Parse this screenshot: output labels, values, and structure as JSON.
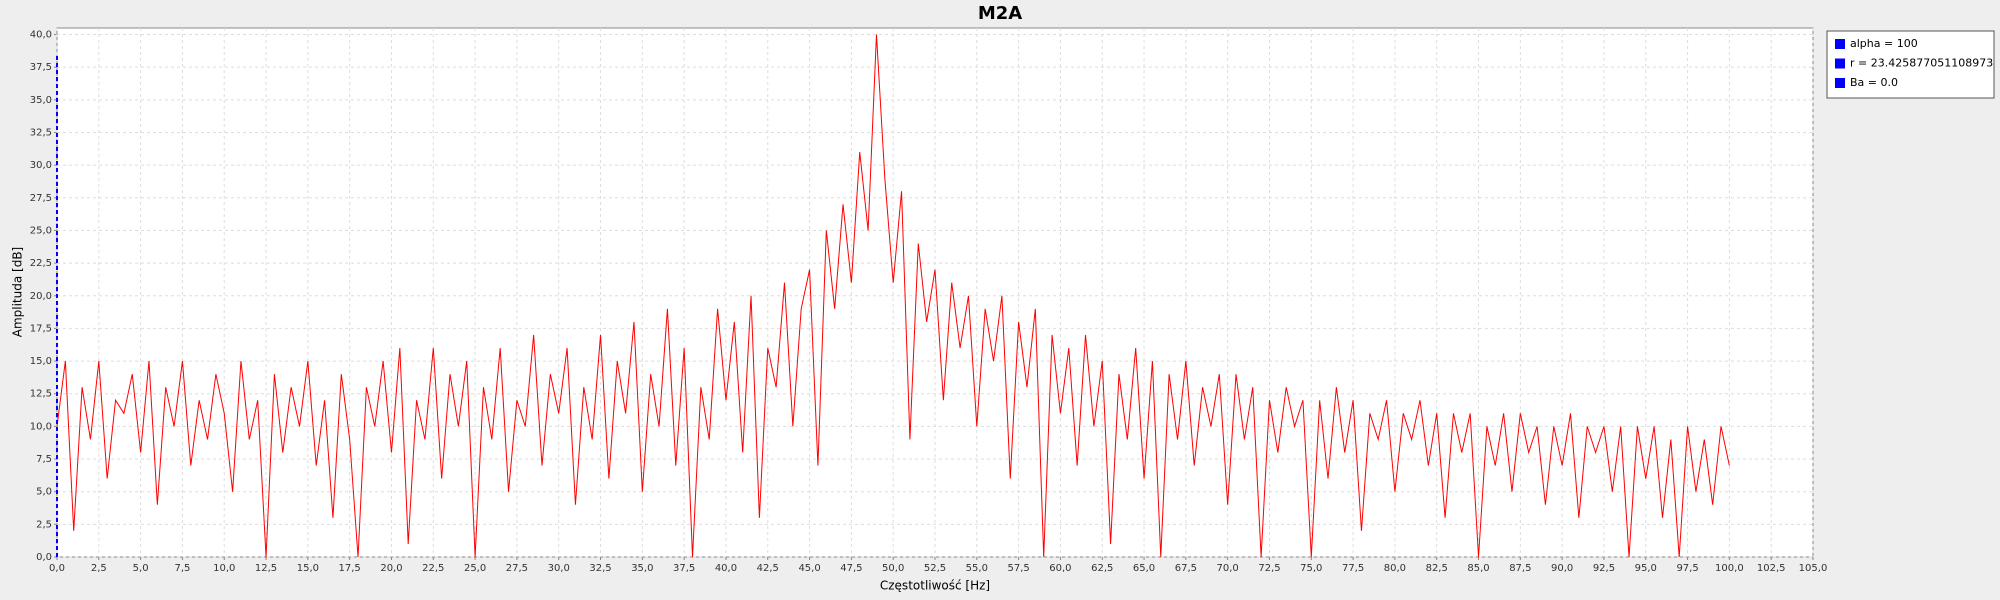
{
  "chart_data": {
    "type": "line",
    "title": "M2A",
    "xlabel": "Częstotliwość [Hz]",
    "ylabel": "Amplituda [dB]",
    "x": [
      0,
      0.5,
      1,
      1.5,
      2,
      2.5,
      3,
      3.5,
      4,
      4.5,
      5,
      5.5,
      6,
      6.5,
      7,
      7.5,
      8,
      8.5,
      9,
      9.5,
      10,
      10.5,
      11,
      11.5,
      12,
      12.5,
      13,
      13.5,
      14,
      14.5,
      15,
      15.5,
      16,
      16.5,
      17,
      17.5,
      18,
      18.5,
      19,
      19.5,
      20,
      20.5,
      21,
      21.5,
      22,
      22.5,
      23,
      23.5,
      24,
      24.5,
      25,
      25.5,
      26,
      26.5,
      27,
      27.5,
      28,
      28.5,
      29,
      29.5,
      30,
      30.5,
      31,
      31.5,
      32,
      32.5,
      33,
      33.5,
      34,
      34.5,
      35,
      35.5,
      36,
      36.5,
      37,
      37.5,
      38,
      38.5,
      39,
      39.5,
      40,
      40.5,
      41,
      41.5,
      42,
      42.5,
      43,
      43.5,
      44,
      44.5,
      45,
      45.5,
      46,
      46.5,
      47,
      47.5,
      48,
      48.5,
      49,
      49.5,
      50,
      50.5,
      51,
      51.5,
      52,
      52.5,
      53,
      53.5,
      54,
      54.5,
      55,
      55.5,
      56,
      56.5,
      57,
      57.5,
      58,
      58.5,
      59,
      59.5,
      60,
      60.5,
      61,
      61.5,
      62,
      62.5,
      63,
      63.5,
      64,
      64.5,
      65,
      65.5,
      66,
      66.5,
      67,
      67.5,
      68,
      68.5,
      69,
      69.5,
      70,
      70.5,
      71,
      71.5,
      72,
      72.5,
      73,
      73.5,
      74,
      74.5,
      75,
      75.5,
      76,
      76.5,
      77,
      77.5,
      78,
      78.5,
      79,
      79.5,
      80,
      80.5,
      81,
      81.5,
      82,
      82.5,
      83,
      83.5,
      84,
      84.5,
      85,
      85.5,
      86,
      86.5,
      87,
      87.5,
      88,
      88.5,
      89,
      89.5,
      90,
      90.5,
      91,
      91.5,
      92,
      92.5,
      93,
      93.5,
      94,
      94.5,
      95,
      95.5,
      96,
      96.5,
      97,
      97.5,
      98,
      98.5,
      99,
      99.5,
      100
    ],
    "series": [
      {
        "color": "#ff0000",
        "values": [
          10,
          15,
          2,
          13,
          9,
          15,
          6,
          12,
          11,
          14,
          8,
          15,
          4,
          13,
          10,
          15,
          7,
          12,
          9,
          14,
          11,
          5,
          15,
          9,
          12,
          0,
          14,
          8,
          13,
          10,
          15,
          7,
          12,
          3,
          14,
          9,
          0,
          13,
          10,
          15,
          8,
          16,
          1,
          12,
          9,
          16,
          6,
          14,
          10,
          15,
          0,
          13,
          9,
          16,
          5,
          12,
          10,
          17,
          7,
          14,
          11,
          16,
          4,
          13,
          9,
          17,
          6,
          15,
          11,
          18,
          5,
          14,
          10,
          19,
          7,
          16,
          0,
          13,
          9,
          19,
          12,
          18,
          8,
          20,
          3,
          16,
          13,
          21,
          10,
          19,
          22,
          7,
          25,
          19,
          27,
          21,
          31,
          25,
          40,
          29,
          21,
          28,
          9,
          24,
          18,
          22,
          12,
          21,
          16,
          20,
          10,
          19,
          15,
          20,
          6,
          18,
          13,
          19,
          0,
          17,
          11,
          16,
          7,
          17,
          10,
          15,
          1,
          14,
          9,
          16,
          6,
          15,
          0,
          14,
          9,
          15,
          7,
          13,
          10,
          14,
          4,
          14,
          9,
          13,
          0,
          12,
          8,
          13,
          10,
          12,
          0,
          12,
          6,
          13,
          8,
          12,
          2,
          11,
          9,
          12,
          5,
          11,
          9,
          12,
          7,
          11,
          3,
          11,
          8,
          11,
          0,
          10,
          7,
          11,
          5,
          11,
          8,
          10,
          4,
          10,
          7,
          11,
          3,
          10,
          8,
          10,
          5,
          10,
          0,
          10,
          6,
          10,
          3,
          9,
          0,
          10,
          5,
          9,
          4,
          10,
          7
        ]
      },
      {
        "color": "#0000ff",
        "dashed": true,
        "x": [
          0,
          0
        ],
        "values": [
          0,
          38.5
        ]
      }
    ],
    "xlim": [
      0,
      105
    ],
    "ylim": [
      0,
      40.5
    ],
    "grid": true,
    "xticks": [
      {
        "value": 0,
        "label": "0,0"
      },
      {
        "value": 2.5,
        "label": "2,5"
      },
      {
        "value": 5,
        "label": "5,0"
      },
      {
        "value": 7.5,
        "label": "7,5"
      },
      {
        "value": 10,
        "label": "10,0"
      },
      {
        "value": 12.5,
        "label": "12,5"
      },
      {
        "value": 15,
        "label": "15,0"
      },
      {
        "value": 17.5,
        "label": "17,5"
      },
      {
        "value": 20,
        "label": "20,0"
      },
      {
        "value": 22.5,
        "label": "22,5"
      },
      {
        "value": 25,
        "label": "25,0"
      },
      {
        "value": 27.5,
        "label": "27,5"
      },
      {
        "value": 30,
        "label": "30,0"
      },
      {
        "value": 32.5,
        "label": "32,5"
      },
      {
        "value": 35,
        "label": "35,0"
      },
      {
        "value": 37.5,
        "label": "37,5"
      },
      {
        "value": 40,
        "label": "40,0"
      },
      {
        "value": 42.5,
        "label": "42,5"
      },
      {
        "value": 45,
        "label": "45,0"
      },
      {
        "value": 47.5,
        "label": "47,5"
      },
      {
        "value": 50,
        "label": "50,0"
      },
      {
        "value": 52.5,
        "label": "52,5"
      },
      {
        "value": 55,
        "label": "55,0"
      },
      {
        "value": 57.5,
        "label": "57,5"
      },
      {
        "value": 60,
        "label": "60,0"
      },
      {
        "value": 62.5,
        "label": "62,5"
      },
      {
        "value": 65,
        "label": "65,0"
      },
      {
        "value": 67.5,
        "label": "67,5"
      },
      {
        "value": 70,
        "label": "70,0"
      },
      {
        "value": 72.5,
        "label": "72,5"
      },
      {
        "value": 75,
        "label": "75,0"
      },
      {
        "value": 77.5,
        "label": "77,5"
      },
      {
        "value": 80,
        "label": "80,0"
      },
      {
        "value": 82.5,
        "label": "82,5"
      },
      {
        "value": 85,
        "label": "85,0"
      },
      {
        "value": 87.5,
        "label": "87,5"
      },
      {
        "value": 90,
        "label": "90,0"
      },
      {
        "value": 92.5,
        "label": "92,5"
      },
      {
        "value": 95,
        "label": "95,0"
      },
      {
        "value": 97.5,
        "label": "97,5"
      },
      {
        "value": 100,
        "label": "100,0"
      },
      {
        "value": 102.5,
        "label": "102,5"
      },
      {
        "value": 105,
        "label": "105,0"
      }
    ],
    "yticks": [
      {
        "value": 0,
        "label": "0,0"
      },
      {
        "value": 2.5,
        "label": "2,5"
      },
      {
        "value": 5,
        "label": "5,0"
      },
      {
        "value": 7.5,
        "label": "7,5"
      },
      {
        "value": 10,
        "label": "10,0"
      },
      {
        "value": 12.5,
        "label": "12,5"
      },
      {
        "value": 15,
        "label": "15,0"
      },
      {
        "value": 17.5,
        "label": "17,5"
      },
      {
        "value": 20,
        "label": "20,0"
      },
      {
        "value": 22.5,
        "label": "22,5"
      },
      {
        "value": 25,
        "label": "25,0"
      },
      {
        "value": 27.5,
        "label": "27,5"
      },
      {
        "value": 30,
        "label": "30,0"
      },
      {
        "value": 32.5,
        "label": "32,5"
      },
      {
        "value": 35,
        "label": "35,0"
      },
      {
        "value": 37.5,
        "label": "37,5"
      },
      {
        "value": 40,
        "label": "40,0"
      }
    ],
    "legend": {
      "position": "right",
      "items": [
        {
          "label": "alpha = 100",
          "color": "#0000ff"
        },
        {
          "label": "r = 23.425877051108973",
          "color": "#0000ff"
        },
        {
          "label": "Ba = 0.0",
          "color": "#0000ff"
        }
      ]
    }
  }
}
